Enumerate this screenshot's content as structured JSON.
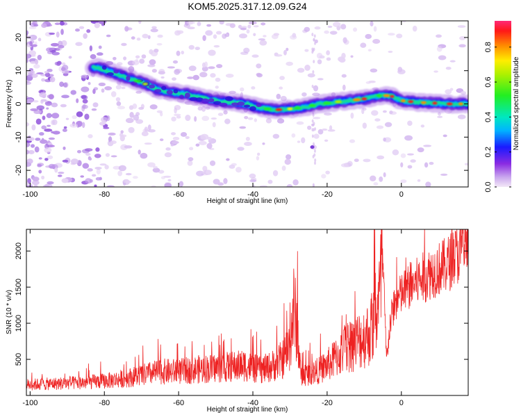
{
  "title": "KOM5.2025.317.12.09.G24",
  "chart_data": [
    {
      "type": "heatmap",
      "name": "spectrogram",
      "xlabel": "Height of straight line (km)",
      "ylabel": "Frequency (Hz)",
      "xlim": [
        -101,
        18
      ],
      "ylim": [
        -25,
        25
      ],
      "xticks": [
        -100,
        -80,
        -60,
        -40,
        -20,
        0
      ],
      "yticks": [
        -20,
        -10,
        0,
        10,
        20
      ],
      "ridge": {
        "x": [
          -82,
          -78,
          -74,
          -70,
          -66,
          -62,
          -58,
          -54,
          -50,
          -46,
          -42,
          -38,
          -34,
          -30,
          -26,
          -22,
          -18,
          -14,
          -10,
          -6,
          -3,
          0,
          4,
          8,
          12,
          17
        ],
        "freq": [
          11,
          9.5,
          8,
          6.5,
          4.5,
          3.5,
          3,
          2,
          1,
          0.5,
          0,
          -1.2,
          -1.8,
          -1.5,
          -1,
          0,
          0.5,
          1,
          1.5,
          2.5,
          2.5,
          1,
          0.5,
          0.3,
          0,
          0
        ]
      },
      "colorbar": {
        "label": "Normalized spectral amplitude",
        "ticks": [
          "0.0",
          "0.2",
          "0.4",
          "0.6",
          "0.8"
        ],
        "range": [
          0,
          0.95
        ]
      }
    },
    {
      "type": "line",
      "name": "snr",
      "xlabel": "Height of straight line (km)",
      "ylabel": "SNR (10 * v/v)",
      "xlim": [
        -101,
        18
      ],
      "ylim": [
        0,
        2300
      ],
      "xticks": [
        -100,
        -80,
        -60,
        -40,
        -20,
        0
      ],
      "yticks": [
        500,
        1000,
        1500,
        2000
      ],
      "color": "#ee2222",
      "x": [
        -101,
        -95,
        -90,
        -85,
        -80,
        -75,
        -70,
        -65,
        -60,
        -55,
        -50,
        -45,
        -42,
        -40,
        -38,
        -35,
        -32,
        -30,
        -29,
        -28,
        -27,
        -25,
        -22,
        -20,
        -18,
        -15,
        -12,
        -10,
        -8,
        -6,
        -5,
        -4,
        -3,
        -2,
        0,
        2,
        5,
        8,
        10,
        12,
        15,
        18
      ],
      "y": [
        150,
        160,
        170,
        180,
        200,
        230,
        280,
        330,
        330,
        360,
        380,
        400,
        420,
        380,
        350,
        400,
        500,
        700,
        1200,
        900,
        250,
        300,
        350,
        420,
        500,
        650,
        750,
        800,
        900,
        1300,
        1800,
        500,
        1000,
        1250,
        1400,
        1500,
        1600,
        1700,
        1750,
        1800,
        1950,
        2050
      ]
    }
  ]
}
